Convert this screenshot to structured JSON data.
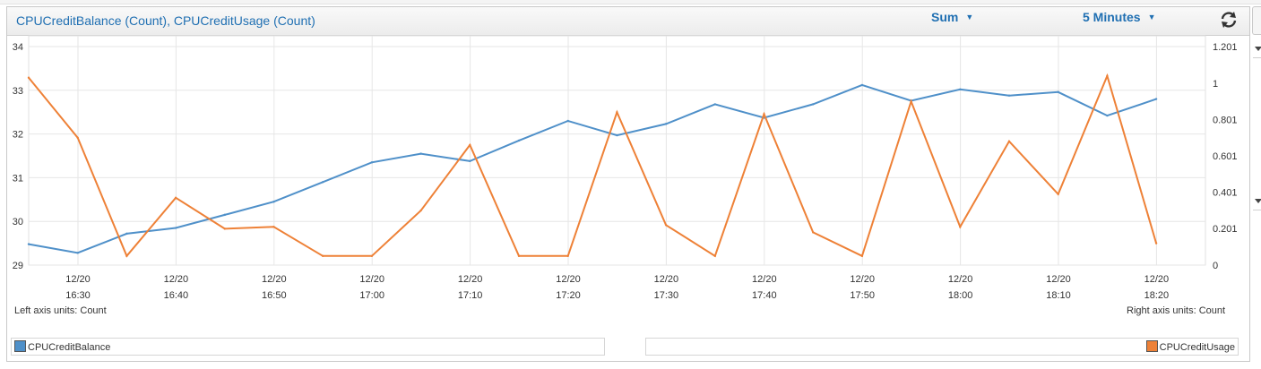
{
  "header": {
    "title": "CPUCreditBalance (Count), CPUCreditUsage (Count)",
    "statistic": "Sum",
    "period": "5 Minutes"
  },
  "units": {
    "left": "Left axis units:  Count",
    "right": "Right axis units:  Count"
  },
  "colors": {
    "balance": "#4f90c9",
    "usage": "#ee8137",
    "grid": "#e6e6e6"
  },
  "chart_data": {
    "type": "line",
    "x_tick_labels": [
      [
        "12/20",
        "16:30"
      ],
      [
        "12/20",
        "16:40"
      ],
      [
        "12/20",
        "16:50"
      ],
      [
        "12/20",
        "17:00"
      ],
      [
        "12/20",
        "17:10"
      ],
      [
        "12/20",
        "17:20"
      ],
      [
        "12/20",
        "17:30"
      ],
      [
        "12/20",
        "17:40"
      ],
      [
        "12/20",
        "17:50"
      ],
      [
        "12/20",
        "18:00"
      ],
      [
        "12/20",
        "18:10"
      ],
      [
        "12/20",
        "18:20"
      ]
    ],
    "x": [
      "16:25",
      "16:30",
      "16:35",
      "16:40",
      "16:45",
      "16:50",
      "16:55",
      "17:00",
      "17:05",
      "17:10",
      "17:15",
      "17:20",
      "17:25",
      "17:30",
      "17:35",
      "17:40",
      "17:45",
      "17:50",
      "17:55",
      "18:00",
      "18:05",
      "18:10",
      "18:15",
      "18:20"
    ],
    "left_axis": {
      "ylim": [
        29,
        34
      ],
      "ticks": [
        "29",
        "30",
        "31",
        "32",
        "33",
        "34"
      ]
    },
    "right_axis": {
      "ylim": [
        0,
        1.201
      ],
      "ticks": [
        "0",
        "0.201",
        "0.401",
        "0.601",
        "0.801",
        "1",
        "1.201"
      ]
    },
    "series": [
      {
        "name": "CPUCreditBalance",
        "axis": "left",
        "values": [
          29.48,
          29.28,
          29.72,
          29.85,
          30.15,
          30.45,
          30.9,
          31.35,
          31.55,
          31.38,
          31.85,
          32.3,
          31.97,
          32.23,
          32.68,
          32.37,
          32.68,
          33.12,
          32.76,
          33.02,
          32.88,
          32.96,
          32.42,
          32.8
        ]
      },
      {
        "name": "CPUCreditUsage",
        "axis": "right",
        "values": [
          1.03,
          0.7,
          0.05,
          0.37,
          0.2,
          0.21,
          0.05,
          0.05,
          0.3,
          0.66,
          0.05,
          0.05,
          0.84,
          0.22,
          0.05,
          0.83,
          0.18,
          0.05,
          0.9,
          0.21,
          0.68,
          0.39,
          1.04,
          0.12
        ]
      }
    ]
  },
  "legend": {
    "left_item": "CPUCreditBalance",
    "right_item": "CPUCreditUsage"
  }
}
